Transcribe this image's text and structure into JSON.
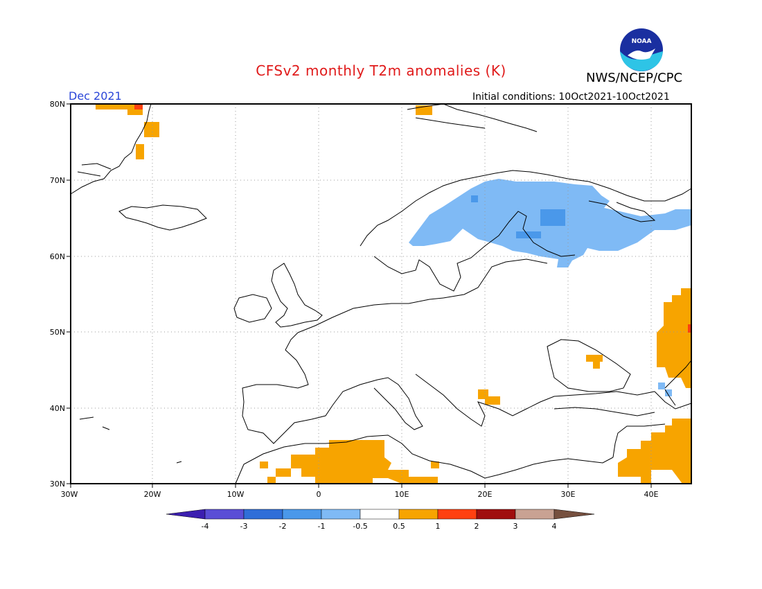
{
  "header": {
    "title": "CFSv2 monthly T2m anomalies (K)",
    "organization": "NWS/NCEP/CPC",
    "logo_text": "NOAA",
    "month": "Dec 2021",
    "initial_conditions": "Initial conditions: 10Oct2021-10Oct2021"
  },
  "map": {
    "region": "Europe",
    "lon_range": [
      -30,
      45
    ],
    "lat_range": [
      30,
      80
    ],
    "lon_ticks": [
      "30W",
      "20W",
      "10W",
      "0",
      "10E",
      "20E",
      "30E",
      "40E"
    ],
    "lat_ticks": [
      "30N",
      "40N",
      "50N",
      "60N",
      "70N",
      "80N"
    ],
    "grid": "dotted",
    "anomaly_regions": [
      {
        "name": "Scandinavia-Finland-NW Russia",
        "category": "-1 to -0.5",
        "color": "#7fbaf5"
      },
      {
        "name": "Central Finland",
        "category": "-2 to -1",
        "color": "#4a98ea"
      },
      {
        "name": "Southern Russia / Kazakhstan border",
        "category": "0.5 to 1",
        "color": "#f7a400"
      },
      {
        "name": "North Africa",
        "category": "0.5 to 1",
        "color": "#f7a400"
      },
      {
        "name": "Middle East",
        "category": "0.5 to 1",
        "color": "#f7a400"
      },
      {
        "name": "Svalbard",
        "category": "0.5 to 1",
        "color": "#f7a400"
      },
      {
        "name": "East Greenland coast",
        "category": "0.5 to 1",
        "color": "#f7a400"
      },
      {
        "name": "Albania / North Macedonia",
        "category": "0.5 to 1",
        "color": "#f7a400"
      },
      {
        "name": "Crimea",
        "category": "0.5 to 1",
        "color": "#f7a400"
      }
    ]
  },
  "colorbar": {
    "ticks": [
      "-4",
      "-3",
      "-2",
      "-1",
      "-0.5",
      "0.5",
      "1",
      "2",
      "3",
      "4"
    ],
    "colors": [
      "#3c1fb0",
      "#5a4ed6",
      "#2f6ed8",
      "#4a98ea",
      "#7fbaf5",
      "#ffffff",
      "#f7a400",
      "#ff4010",
      "#a00e0e",
      "#c9a293",
      "#76503f"
    ]
  }
}
